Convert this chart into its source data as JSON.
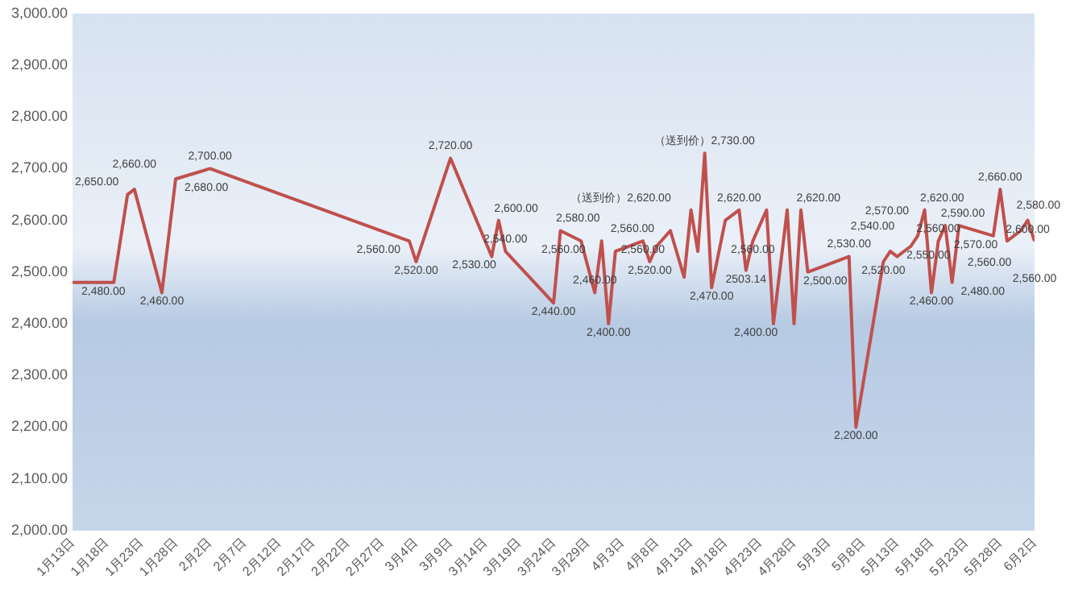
{
  "chart_data": {
    "type": "line",
    "x": [
      "--01-13",
      "--01-19",
      "--01-21",
      "--01-22",
      "--01-26",
      "--01-28",
      "--02-02",
      "--03-03",
      "--03-04",
      "--03-09",
      "--03-15",
      "--03-16",
      "--03-17",
      "--03-24",
      "--03-25",
      "--03-28",
      "--03-30",
      "--03-31",
      "--04-01",
      "--04-02",
      "--04-06",
      "--04-07",
      "--04-08",
      "--04-10",
      "--04-12",
      "--04-13",
      "--04-14",
      "--04-15",
      "--04-16",
      "--04-18",
      "--04-20",
      "--04-21",
      "--04-22",
      "--04-24",
      "--04-25",
      "--04-27",
      "--04-28",
      "--04-29",
      "--04-30",
      "--05-06",
      "--05-07",
      "--05-11",
      "--05-12",
      "--05-13",
      "--05-15",
      "--05-16",
      "--05-17",
      "--05-18",
      "--05-19",
      "--05-20",
      "--05-21",
      "--05-22",
      "--05-27",
      "--05-28",
      "--05-29",
      "--05-31",
      "--06-01",
      "--06-02"
    ],
    "series": [
      {
        "color": "#c0504d",
        "values": [
          2480,
          2480,
          2650,
          2660,
          2460,
          2680,
          2700,
          2560,
          2520,
          2720,
          2530,
          2600,
          2540,
          2440,
          2580,
          2560,
          2460,
          2560,
          2400,
          2540,
          2560,
          2520,
          2550,
          2580,
          2490,
          2620,
          2540,
          2730,
          2470,
          2600,
          2620,
          2503.14,
          2560,
          2620,
          2400,
          2620,
          2400,
          2620,
          2500,
          2530,
          2200,
          2520,
          2540,
          2530,
          2550,
          2570,
          2620,
          2460,
          2560,
          2590,
          2480,
          2590,
          2570,
          2660,
          2560,
          2580,
          2600,
          2560
        ],
        "value_labels": [
          "2,480.00",
          null,
          "2,650.00",
          "2,660.00",
          "2,460.00",
          "2,680.00",
          "2,700.00",
          "2,560.00",
          "2,520.00",
          "2,720.00",
          "2,530.00",
          "2,600.00",
          "2,540.00",
          "2,440.00",
          "2,580.00",
          "2,560.00",
          "2,460.00",
          "2,560.00",
          "2,400.00",
          null,
          "2,560.00",
          "2,520.00",
          null,
          null,
          null,
          "（送到价）2,620.00",
          null,
          "（送到价）2,730.00",
          "2,470.00",
          null,
          "2,620.00",
          "2503.14",
          "2,560.00",
          null,
          "2,400.00",
          null,
          null,
          "2,620.00",
          "2,500.00",
          "2,530.00",
          "2,200.00",
          "2,520.00",
          "2,540.00",
          null,
          "2,550.00",
          "2,570.00",
          "2,620.00",
          "2,460.00",
          "2,560.00",
          "2,590.00",
          "2,480.00",
          null,
          "2,570.00",
          "2,660.00",
          "2,560.00",
          "2,580.00",
          "2,600.00",
          "2,560.00"
        ]
      }
    ],
    "xlim": [
      "--01-13",
      "--06-02"
    ],
    "xticks": [
      {
        "value": "--01-13",
        "label": "1月13日"
      },
      {
        "value": "--01-18",
        "label": "1月18日"
      },
      {
        "value": "--01-23",
        "label": "1月23日"
      },
      {
        "value": "--01-28",
        "label": "1月28日"
      },
      {
        "value": "--02-02",
        "label": "2月2日"
      },
      {
        "value": "--02-07",
        "label": "2月7日"
      },
      {
        "value": "--02-12",
        "label": "2月12日"
      },
      {
        "value": "--02-17",
        "label": "2月17日"
      },
      {
        "value": "--02-22",
        "label": "2月22日"
      },
      {
        "value": "--02-27",
        "label": "2月27日"
      },
      {
        "value": "--03-04",
        "label": "3月4日"
      },
      {
        "value": "--03-09",
        "label": "3月9日"
      },
      {
        "value": "--03-14",
        "label": "3月14日"
      },
      {
        "value": "--03-19",
        "label": "3月19日"
      },
      {
        "value": "--03-24",
        "label": "3月24日"
      },
      {
        "value": "--03-29",
        "label": "3月29日"
      },
      {
        "value": "--04-03",
        "label": "4月3日"
      },
      {
        "value": "--04-08",
        "label": "4月8日"
      },
      {
        "value": "--04-13",
        "label": "4月13日"
      },
      {
        "value": "--04-18",
        "label": "4月18日"
      },
      {
        "value": "--04-23",
        "label": "4月23日"
      },
      {
        "value": "--04-28",
        "label": "4月28日"
      },
      {
        "value": "--05-03",
        "label": "5月3日"
      },
      {
        "value": "--05-08",
        "label": "5月8日"
      },
      {
        "value": "--05-13",
        "label": "5月13日"
      },
      {
        "value": "--05-18",
        "label": "5月18日"
      },
      {
        "value": "--05-23",
        "label": "5月23日"
      },
      {
        "value": "--05-28",
        "label": "5月28日"
      },
      {
        "value": "--06-02",
        "label": "6月2日"
      }
    ],
    "ylim": [
      2000,
      3000
    ],
    "yticks": [
      {
        "value": 2000,
        "label": "2,000.00"
      },
      {
        "value": 2100,
        "label": "2,100.00"
      },
      {
        "value": 2200,
        "label": "2,200.00"
      },
      {
        "value": 2300,
        "label": "2,300.00"
      },
      {
        "value": 2400,
        "label": "2,400.00"
      },
      {
        "value": 2500,
        "label": "2,500.00"
      },
      {
        "value": 2600,
        "label": "2,600.00"
      },
      {
        "value": 2700,
        "label": "2,700.00"
      },
      {
        "value": 2800,
        "label": "2,800.00"
      },
      {
        "value": 2900,
        "label": "2,900.00"
      },
      {
        "value": 3000,
        "label": "3,000.00"
      }
    ],
    "grid": false,
    "legend": false,
    "marker": "none",
    "line_style": "solid"
  }
}
